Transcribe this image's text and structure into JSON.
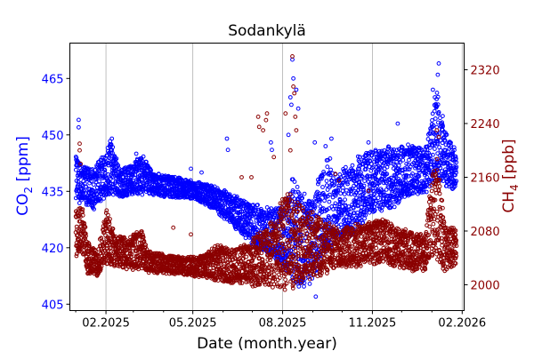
{
  "chart_data": {
    "type": "scatter",
    "title": "Sodankylä",
    "xlabel": "Date (month.year)",
    "ylabel_left": {
      "base": "CO",
      "sub": "2",
      "rest": " [ppm]"
    },
    "ylabel_right": {
      "base": "CH",
      "sub": "4",
      "rest": " [ppb]"
    },
    "x_reference": "days since 01.01.2025",
    "xlim_days": [
      -6,
      398
    ],
    "xticks": [
      {
        "day": 31,
        "label": "02.2025"
      },
      {
        "day": 120,
        "label": "05.2025"
      },
      {
        "day": 212,
        "label": "08.2025"
      },
      {
        "day": 304,
        "label": "11.2025"
      },
      {
        "day": 396,
        "label": "02.2026"
      }
    ],
    "minor_xticks_days": [
      0,
      59,
      90,
      151,
      181,
      243,
      273,
      334,
      365
    ],
    "ylim_left": [
      403.3,
      474.4
    ],
    "yticks_left": [
      405,
      420,
      435,
      450,
      465
    ],
    "ylim_right": [
      1961.6,
      2359.7
    ],
    "yticks_right": [
      2000,
      2080,
      2160,
      2240,
      2320
    ],
    "grid": "x-major",
    "series": [
      {
        "name": "CO2",
        "axis": "left",
        "color": "#0000ff",
        "ranges_day_low_high": [
          [
            0,
            432,
            445
          ],
          [
            8,
            431,
            442
          ],
          [
            18,
            430,
            441
          ],
          [
            30,
            433,
            446
          ],
          [
            36,
            434,
            449
          ],
          [
            45,
            433,
            441
          ],
          [
            60,
            434,
            443
          ],
          [
            68,
            434,
            445
          ],
          [
            80,
            434,
            440
          ],
          [
            100,
            433,
            439
          ],
          [
            120,
            433,
            438
          ],
          [
            135,
            431,
            437
          ],
          [
            150,
            428,
            436
          ],
          [
            160,
            426,
            434
          ],
          [
            175,
            422,
            433
          ],
          [
            190,
            419,
            431
          ],
          [
            205,
            416,
            431
          ],
          [
            215,
            414,
            432
          ],
          [
            222,
            410,
            440
          ],
          [
            230,
            409,
            436
          ],
          [
            240,
            410,
            433
          ],
          [
            250,
            414,
            440
          ],
          [
            258,
            418,
            445
          ],
          [
            270,
            421,
            440
          ],
          [
            285,
            423,
            444
          ],
          [
            300,
            428,
            446
          ],
          [
            315,
            430,
            447
          ],
          [
            330,
            431,
            447
          ],
          [
            345,
            434,
            448
          ],
          [
            358,
            434,
            447
          ],
          [
            365,
            437,
            455
          ],
          [
            370,
            438,
            462
          ],
          [
            378,
            436,
            452
          ],
          [
            390,
            435,
            446
          ]
        ],
        "outliers": [
          [
            3,
            454
          ],
          [
            3,
            452
          ],
          [
            37,
            449
          ],
          [
            62,
            445
          ],
          [
            118,
            441
          ],
          [
            129,
            440
          ],
          [
            155,
            449
          ],
          [
            156,
            446
          ],
          [
            200,
            448
          ],
          [
            201,
            446
          ],
          [
            218,
            450
          ],
          [
            222,
            470
          ],
          [
            223,
            465
          ],
          [
            220,
            460
          ],
          [
            221,
            458
          ],
          [
            226,
            462
          ],
          [
            228,
            457
          ],
          [
            245,
            448
          ],
          [
            256,
            447
          ],
          [
            262,
            449
          ],
          [
            300,
            448
          ],
          [
            330,
            453
          ],
          [
            345,
            447
          ],
          [
            366,
            462
          ],
          [
            368,
            460
          ],
          [
            372,
            469
          ],
          [
            371,
            466
          ],
          [
            376,
            455
          ],
          [
            246,
            407
          ]
        ]
      },
      {
        "name": "CH4",
        "axis": "right",
        "color": "#8b0000",
        "ranges_day_low_high": [
          [
            0,
            2040,
            2120
          ],
          [
            6,
            2045,
            2130
          ],
          [
            12,
            2015,
            2065
          ],
          [
            22,
            2012,
            2050
          ],
          [
            32,
            2030,
            2115
          ],
          [
            40,
            2025,
            2075
          ],
          [
            55,
            2022,
            2070
          ],
          [
            65,
            2022,
            2090
          ],
          [
            75,
            2018,
            2050
          ],
          [
            95,
            2016,
            2045
          ],
          [
            115,
            2014,
            2042
          ],
          [
            130,
            2010,
            2045
          ],
          [
            145,
            2005,
            2060
          ],
          [
            160,
            2000,
            2055
          ],
          [
            175,
            1998,
            2065
          ],
          [
            190,
            1995,
            2080
          ],
          [
            205,
            1992,
            2100
          ],
          [
            215,
            1990,
            2150
          ],
          [
            225,
            1995,
            2130
          ],
          [
            235,
            2000,
            2115
          ],
          [
            245,
            2010,
            2110
          ],
          [
            255,
            2015,
            2095
          ],
          [
            270,
            2025,
            2085
          ],
          [
            285,
            2025,
            2090
          ],
          [
            300,
            2030,
            2095
          ],
          [
            315,
            2030,
            2100
          ],
          [
            330,
            2025,
            2085
          ],
          [
            345,
            2020,
            2080
          ],
          [
            358,
            2020,
            2075
          ],
          [
            365,
            2035,
            2170
          ],
          [
            370,
            2030,
            2200
          ],
          [
            378,
            2020,
            2090
          ],
          [
            390,
            2030,
            2085
          ]
        ],
        "outliers": [
          [
            4,
            2210
          ],
          [
            4,
            2200
          ],
          [
            5,
            2180
          ],
          [
            100,
            2085
          ],
          [
            118,
            2075
          ],
          [
            170,
            2160
          ],
          [
            180,
            2160
          ],
          [
            187,
            2250
          ],
          [
            188,
            2235
          ],
          [
            192,
            2230
          ],
          [
            196,
            2255
          ],
          [
            195,
            2245
          ],
          [
            203,
            2190
          ],
          [
            215,
            2255
          ],
          [
            222,
            2340
          ],
          [
            223,
            2295
          ],
          [
            224,
            2285
          ],
          [
            225,
            2250
          ],
          [
            226,
            2230
          ],
          [
            220,
            2200
          ],
          [
            266,
            2165
          ],
          [
            270,
            2155
          ],
          [
            300,
            2140
          ],
          [
            370,
            2230
          ],
          [
            372,
            2220
          ]
        ]
      }
    ]
  }
}
